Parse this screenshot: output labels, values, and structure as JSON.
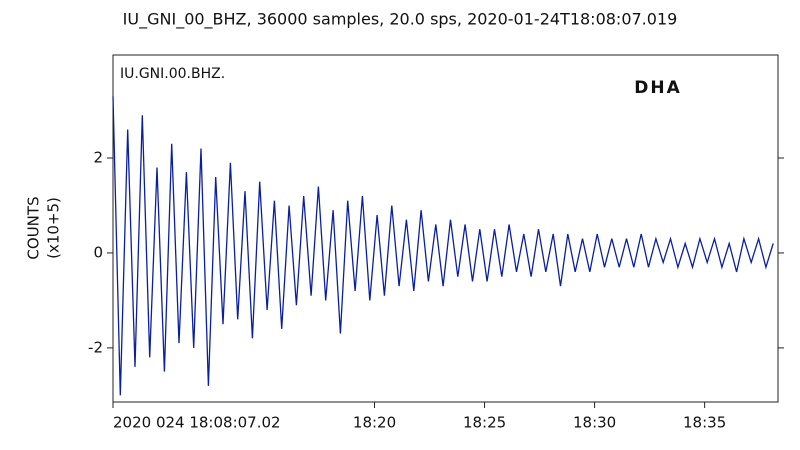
{
  "chart_data": {
    "type": "line",
    "title": "IU_GNI_00_BHZ, 36000 samples, 20.0 sps, 2020-01-24T18:08:07.019",
    "annotation": "IU.GNI.00.BHZ.",
    "watermark": "DHA",
    "watermark_color": "#c8102e",
    "y_label": [
      "COUNTS",
      "(x10+5)"
    ],
    "x": [
      "18:08:07",
      "18:08:27",
      "18:08:47",
      "18:09:07",
      "18:09:27",
      "18:09:47",
      "18:10:07",
      "18:10:27",
      "18:10:47",
      "18:11:07",
      "18:11:27",
      "18:11:47",
      "18:12:07",
      "18:12:27",
      "18:12:47",
      "18:13:07",
      "18:13:27",
      "18:13:47",
      "18:14:07",
      "18:14:27",
      "18:14:47",
      "18:15:07",
      "18:15:27",
      "18:15:47",
      "18:16:07",
      "18:16:27",
      "18:16:47",
      "18:17:07",
      "18:17:27",
      "18:17:47",
      "18:18:07",
      "18:18:27",
      "18:18:47",
      "18:19:07",
      "18:19:27",
      "18:19:47",
      "18:20:07",
      "18:20:27",
      "18:20:47",
      "18:21:07",
      "18:21:27",
      "18:21:47",
      "18:22:07",
      "18:22:27",
      "18:22:47",
      "18:23:07",
      "18:23:27",
      "18:23:47",
      "18:24:07",
      "18:24:27",
      "18:24:47",
      "18:25:07",
      "18:25:27",
      "18:25:47",
      "18:26:07",
      "18:26:27",
      "18:26:47",
      "18:27:07",
      "18:27:27",
      "18:27:47",
      "18:28:07",
      "18:28:27",
      "18:28:47",
      "18:29:07",
      "18:29:27",
      "18:29:47",
      "18:30:07",
      "18:30:27",
      "18:30:47",
      "18:31:07",
      "18:31:27",
      "18:31:47",
      "18:32:07",
      "18:32:27",
      "18:32:47",
      "18:33:07",
      "18:33:27",
      "18:33:47",
      "18:34:07",
      "18:34:27",
      "18:34:47",
      "18:35:07",
      "18:35:27",
      "18:35:47",
      "18:36:07",
      "18:36:27",
      "18:36:47",
      "18:37:07",
      "18:37:27",
      "18:37:47",
      "18:38:07"
    ],
    "series": [
      {
        "name": "IU.GNI.00.BHZ",
        "color": "#0a1fa0",
        "values": [
          3.3,
          -3.0,
          2.6,
          -2.4,
          2.9,
          -2.2,
          1.8,
          -2.5,
          2.3,
          -1.9,
          1.7,
          -2.0,
          2.2,
          -2.8,
          1.6,
          -1.5,
          1.9,
          -1.4,
          1.3,
          -1.8,
          1.5,
          -1.2,
          1.1,
          -1.6,
          1.0,
          -1.1,
          1.2,
          -0.9,
          1.4,
          -1.0,
          0.9,
          -1.7,
          1.1,
          -0.8,
          1.2,
          -1.0,
          0.8,
          -0.9,
          1.0,
          -0.7,
          0.7,
          -0.8,
          0.9,
          -0.6,
          0.6,
          -0.7,
          0.7,
          -0.5,
          0.6,
          -0.6,
          0.5,
          -0.6,
          0.5,
          -0.5,
          0.6,
          -0.4,
          0.4,
          -0.5,
          0.5,
          -0.4,
          0.4,
          -0.7,
          0.4,
          -0.4,
          0.3,
          -0.4,
          0.4,
          -0.3,
          0.3,
          -0.3,
          0.3,
          -0.3,
          0.4,
          -0.3,
          0.3,
          -0.2,
          0.3,
          -0.3,
          0.2,
          -0.3,
          0.3,
          -0.2,
          0.3,
          -0.3,
          0.2,
          -0.4,
          0.3,
          -0.2,
          0.3,
          -0.3,
          0.2
        ]
      }
    ],
    "xlim": [
      "18:08:07",
      "18:38:20"
    ],
    "xticks": [
      {
        "value": "18:08:07.02",
        "label": "2020 024 18:08:07.02"
      },
      "18:20",
      "18:25",
      "18:30",
      "18:35"
    ],
    "ylim": [
      -3.14,
      4.17
    ],
    "yticks": [
      -2,
      0,
      2
    ]
  }
}
